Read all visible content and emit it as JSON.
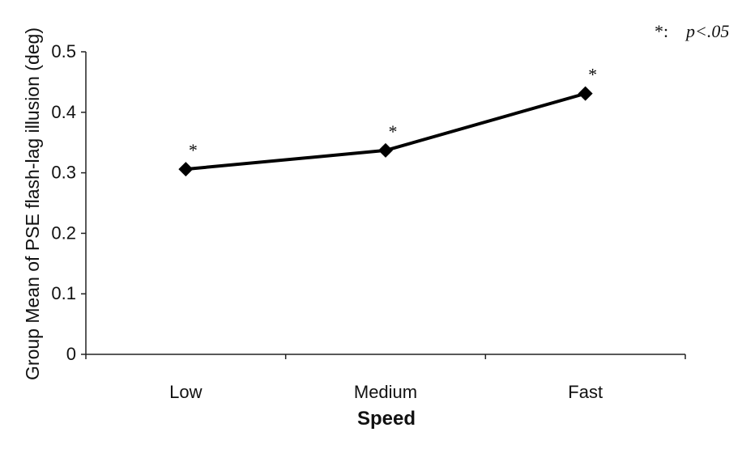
{
  "chart_data": {
    "type": "line",
    "categories": [
      "Low",
      "Medium",
      "Fast"
    ],
    "series": [
      {
        "values": [
          0.306,
          0.337,
          0.431
        ]
      }
    ],
    "significance_markers": [
      "*",
      "*",
      "*"
    ],
    "xlabel": "Speed",
    "ylabel": "Group Mean of PSE flash-lag illusion (deg)",
    "ylim": [
      0,
      0.5
    ],
    "yticks": [
      "0",
      "0.1",
      "0.2",
      "0.3",
      "0.4",
      "0.5"
    ],
    "grid": false,
    "legend_note": {
      "symbol": "*:",
      "text": "p<.05"
    },
    "colors": {
      "line": "#000000",
      "marker": "#000000"
    }
  }
}
